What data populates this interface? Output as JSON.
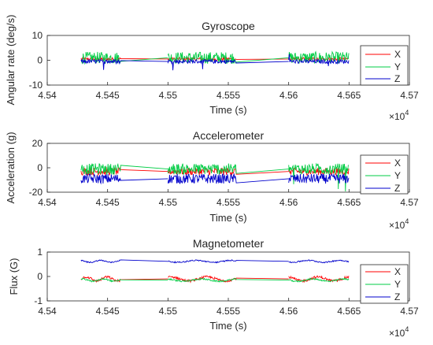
{
  "chart_data": [
    {
      "type": "line",
      "title": "Gyroscope",
      "xlabel": "Time (s)",
      "ylabel": "Angular rate (deg/s)",
      "xlim": [
        45400,
        45700
      ],
      "ylim": [
        -10,
        10
      ],
      "xticks": [
        45400,
        45450,
        45500,
        45550,
        45600,
        45650,
        45700
      ],
      "xtick_labels": [
        "4.54",
        "4.545",
        "4.55",
        "4.555",
        "4.56",
        "4.565",
        "4.57"
      ],
      "x_exponent_base": "×10",
      "x_exponent_power": "4",
      "yticks": [
        -10,
        0,
        10
      ],
      "ytick_labels": [
        "-10",
        "0",
        "10"
      ],
      "grid": false,
      "legend_placement": "right",
      "segments": [
        [
          45428,
          45461
        ],
        [
          45500,
          45557
        ],
        [
          45600,
          45650
        ]
      ],
      "series": [
        {
          "name": "X",
          "color": "#ff0000",
          "mean": 0.5,
          "noise": 0.6,
          "spikes": 0
        },
        {
          "name": "Y",
          "color": "#00cc44",
          "mean": 1.0,
          "noise": 2.4,
          "spikes": 0
        },
        {
          "name": "Z",
          "color": "#0000cc",
          "mean": -0.5,
          "noise": 0.8,
          "spikes": 4
        }
      ]
    },
    {
      "type": "line",
      "title": "Accelerometer",
      "xlabel": "Time (s)",
      "ylabel": "Acceleration (g)",
      "xlim": [
        45400,
        45700
      ],
      "ylim": [
        -20,
        20
      ],
      "xticks": [
        45400,
        45450,
        45500,
        45550,
        45600,
        45650,
        45700
      ],
      "xtick_labels": [
        "4.54",
        "4.545",
        "4.55",
        "4.555",
        "4.56",
        "4.565",
        "4.57"
      ],
      "x_exponent_base": "×10",
      "x_exponent_power": "4",
      "yticks": [
        -20,
        0,
        20
      ],
      "ytick_labels": [
        "-20",
        "0",
        "20"
      ],
      "grid": false,
      "legend_placement": "right",
      "segments": [
        [
          45428,
          45461
        ],
        [
          45500,
          45557
        ],
        [
          45600,
          45650
        ]
      ],
      "series": [
        {
          "name": "X",
          "color": "#ff0000",
          "mean": -3.0,
          "noise": 3.0,
          "spikes": 0
        },
        {
          "name": "Y",
          "color": "#00cc44",
          "mean": -1.0,
          "noise": 4.5,
          "spikes": 1
        },
        {
          "name": "Z",
          "color": "#0000cc",
          "mean": -9.0,
          "noise": 4.0,
          "spikes": 0
        }
      ]
    },
    {
      "type": "line",
      "title": "Magnetometer",
      "xlabel": "Time (s)",
      "ylabel": "Flux (G)",
      "xlim": [
        45400,
        45700
      ],
      "ylim": [
        -1,
        1
      ],
      "xticks": [
        45400,
        45450,
        45500,
        45550,
        45600,
        45650,
        45700
      ],
      "xtick_labels": [
        "4.54",
        "4.545",
        "4.55",
        "4.555",
        "4.56",
        "4.565",
        "4.57"
      ],
      "x_exponent_base": "×10",
      "x_exponent_power": "4",
      "yticks": [
        -1,
        0,
        1
      ],
      "ytick_labels": [
        "-1",
        "0",
        "1"
      ],
      "grid": false,
      "legend_placement": "right",
      "segments": [
        [
          45428,
          45461
        ],
        [
          45500,
          45557
        ],
        [
          45600,
          45650
        ]
      ],
      "series": [
        {
          "name": "X",
          "color": "#ff0000",
          "mean": -0.1,
          "noise": 0.1,
          "spikes": 0
        },
        {
          "name": "Y",
          "color": "#00cc44",
          "mean": -0.15,
          "noise": 0.06,
          "spikes": 0
        },
        {
          "name": "Z",
          "color": "#0000cc",
          "mean": 0.62,
          "noise": 0.05,
          "spikes": 0
        }
      ]
    }
  ]
}
